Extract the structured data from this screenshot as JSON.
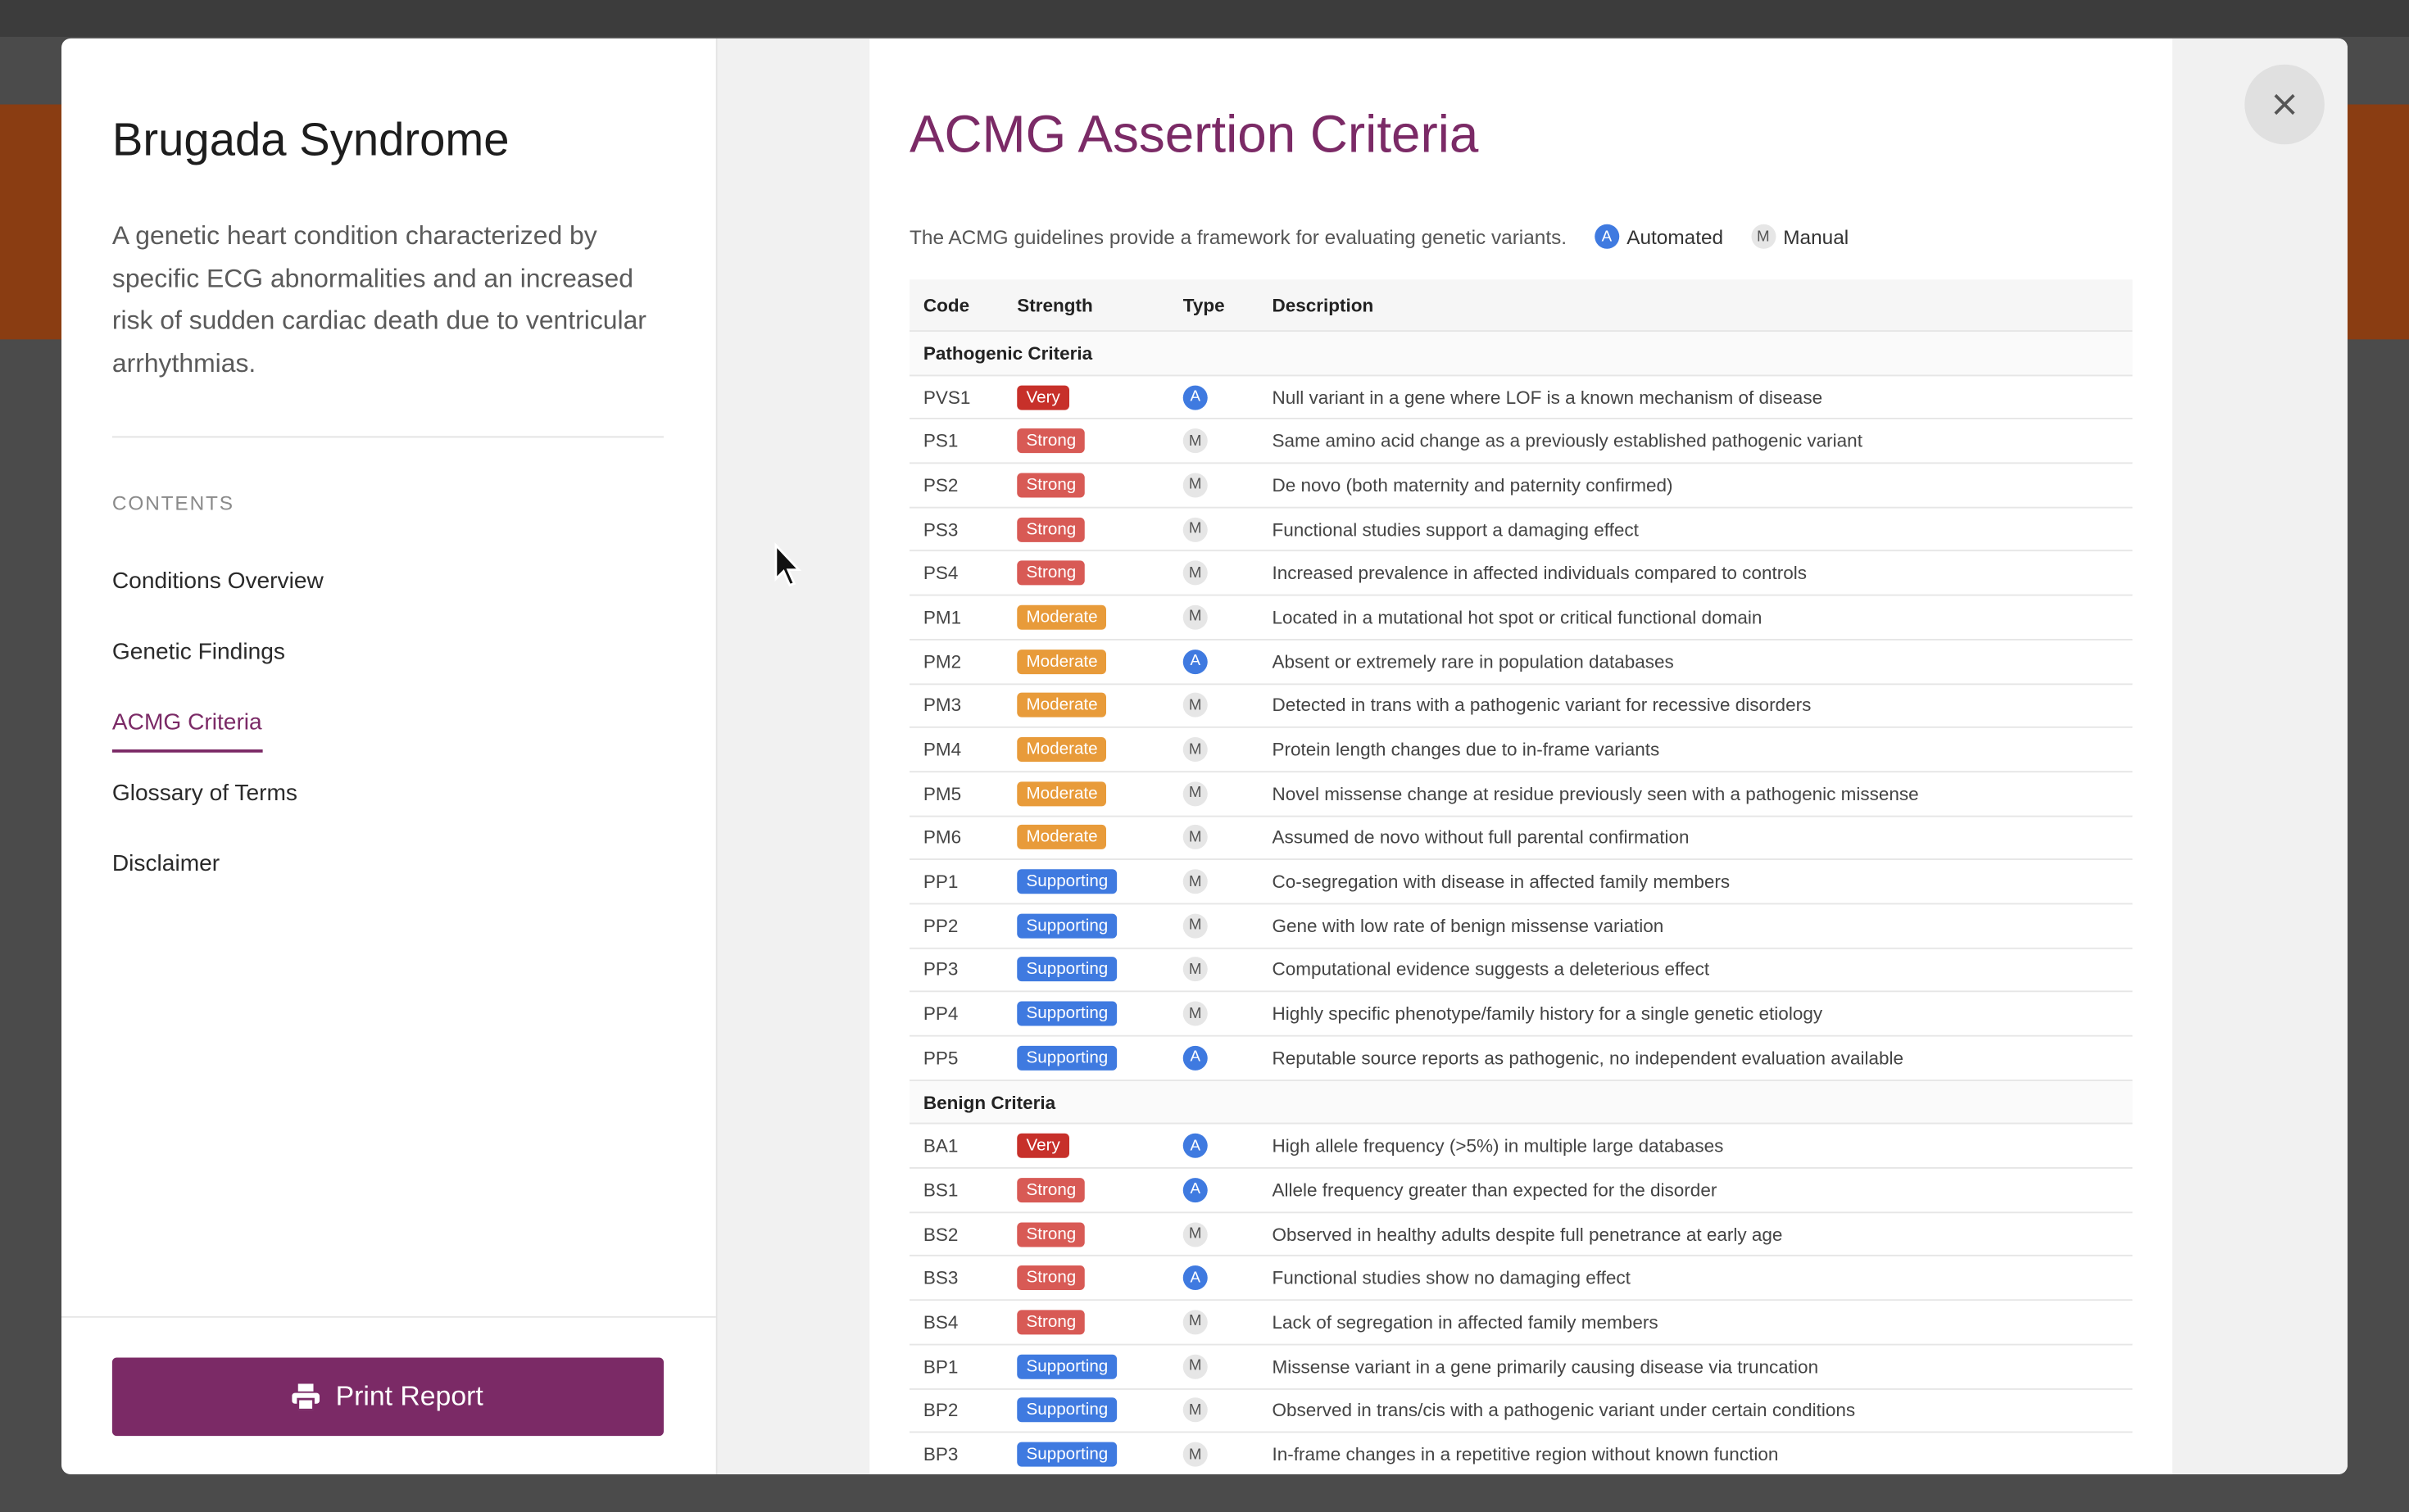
{
  "sidebar": {
    "title": "Brugada Syndrome",
    "description": "A genetic heart condition characterized by specific ECG abnormalities and an increased risk of sudden cardiac death due to ventricular arrhythmias.",
    "contents_label": "CONTENTS",
    "contents": [
      "Conditions Overview",
      "Genetic Findings",
      "ACMG Criteria",
      "Glossary of Terms",
      "Disclaimer"
    ],
    "active_item": 2,
    "print_button": "Print Report"
  },
  "main": {
    "heading": "ACMG Assertion Criteria",
    "intro": "The ACMG guidelines provide a framework for evaluating genetic variants.",
    "legend": [
      {
        "badge": "A",
        "label": "Automated"
      },
      {
        "badge": "M",
        "label": "Manual"
      }
    ],
    "strength_colors": {
      "Very": "#c7302a",
      "Strong": "#d85a55",
      "Moderate": "#e89b3a",
      "Supporting": "#3f7ae0"
    },
    "type_colors": {
      "A": {
        "bg": "#3f7ae0",
        "fg": "#ffffff"
      },
      "M": {
        "bg": "#e6e6e6",
        "fg": "#555555"
      }
    },
    "table": {
      "columns": [
        "Code",
        "Strength",
        "Type",
        "Description"
      ],
      "sections": [
        {
          "title": "Pathogenic Criteria",
          "rows": [
            [
              "PVS1",
              "Very",
              "A",
              "Null variant in a gene where LOF is a known mechanism of disease"
            ],
            [
              "PS1",
              "Strong",
              "M",
              "Same amino acid change as a previously established pathogenic variant"
            ],
            [
              "PS2",
              "Strong",
              "M",
              "De novo (both maternity and paternity confirmed)"
            ],
            [
              "PS3",
              "Strong",
              "M",
              "Functional studies support a damaging effect"
            ],
            [
              "PS4",
              "Strong",
              "M",
              "Increased prevalence in affected individuals compared to controls"
            ],
            [
              "PM1",
              "Moderate",
              "M",
              "Located in a mutational hot spot or critical functional domain"
            ],
            [
              "PM2",
              "Moderate",
              "A",
              "Absent or extremely rare in population databases"
            ],
            [
              "PM3",
              "Moderate",
              "M",
              "Detected in trans with a pathogenic variant for recessive disorders"
            ],
            [
              "PM4",
              "Moderate",
              "M",
              "Protein length changes due to in-frame variants"
            ],
            [
              "PM5",
              "Moderate",
              "M",
              "Novel missense change at residue previously seen with a pathogenic missense"
            ],
            [
              "PM6",
              "Moderate",
              "M",
              "Assumed de novo without full parental confirmation"
            ],
            [
              "PP1",
              "Supporting",
              "M",
              "Co-segregation with disease in affected family members"
            ],
            [
              "PP2",
              "Supporting",
              "M",
              "Gene with low rate of benign missense variation"
            ],
            [
              "PP3",
              "Supporting",
              "M",
              "Computational evidence suggests a deleterious effect"
            ],
            [
              "PP4",
              "Supporting",
              "M",
              "Highly specific phenotype/family history for a single genetic etiology"
            ],
            [
              "PP5",
              "Supporting",
              "A",
              "Reputable source reports as pathogenic, no independent evaluation available"
            ]
          ]
        },
        {
          "title": "Benign Criteria",
          "rows": [
            [
              "BA1",
              "Very",
              "A",
              "High allele frequency (>5%) in multiple large databases"
            ],
            [
              "BS1",
              "Strong",
              "A",
              "Allele frequency greater than expected for the disorder"
            ],
            [
              "BS2",
              "Strong",
              "M",
              "Observed in healthy adults despite full penetrance at early age"
            ],
            [
              "BS3",
              "Strong",
              "A",
              "Functional studies show no damaging effect"
            ],
            [
              "BS4",
              "Strong",
              "M",
              "Lack of segregation in affected family members"
            ],
            [
              "BP1",
              "Supporting",
              "M",
              "Missense variant in a gene primarily causing disease via truncation"
            ],
            [
              "BP2",
              "Supporting",
              "M",
              "Observed in trans/cis with a pathogenic variant under certain conditions"
            ],
            [
              "BP3",
              "Supporting",
              "M",
              "In-frame changes in a repetitive region without known function"
            ]
          ]
        }
      ]
    }
  }
}
